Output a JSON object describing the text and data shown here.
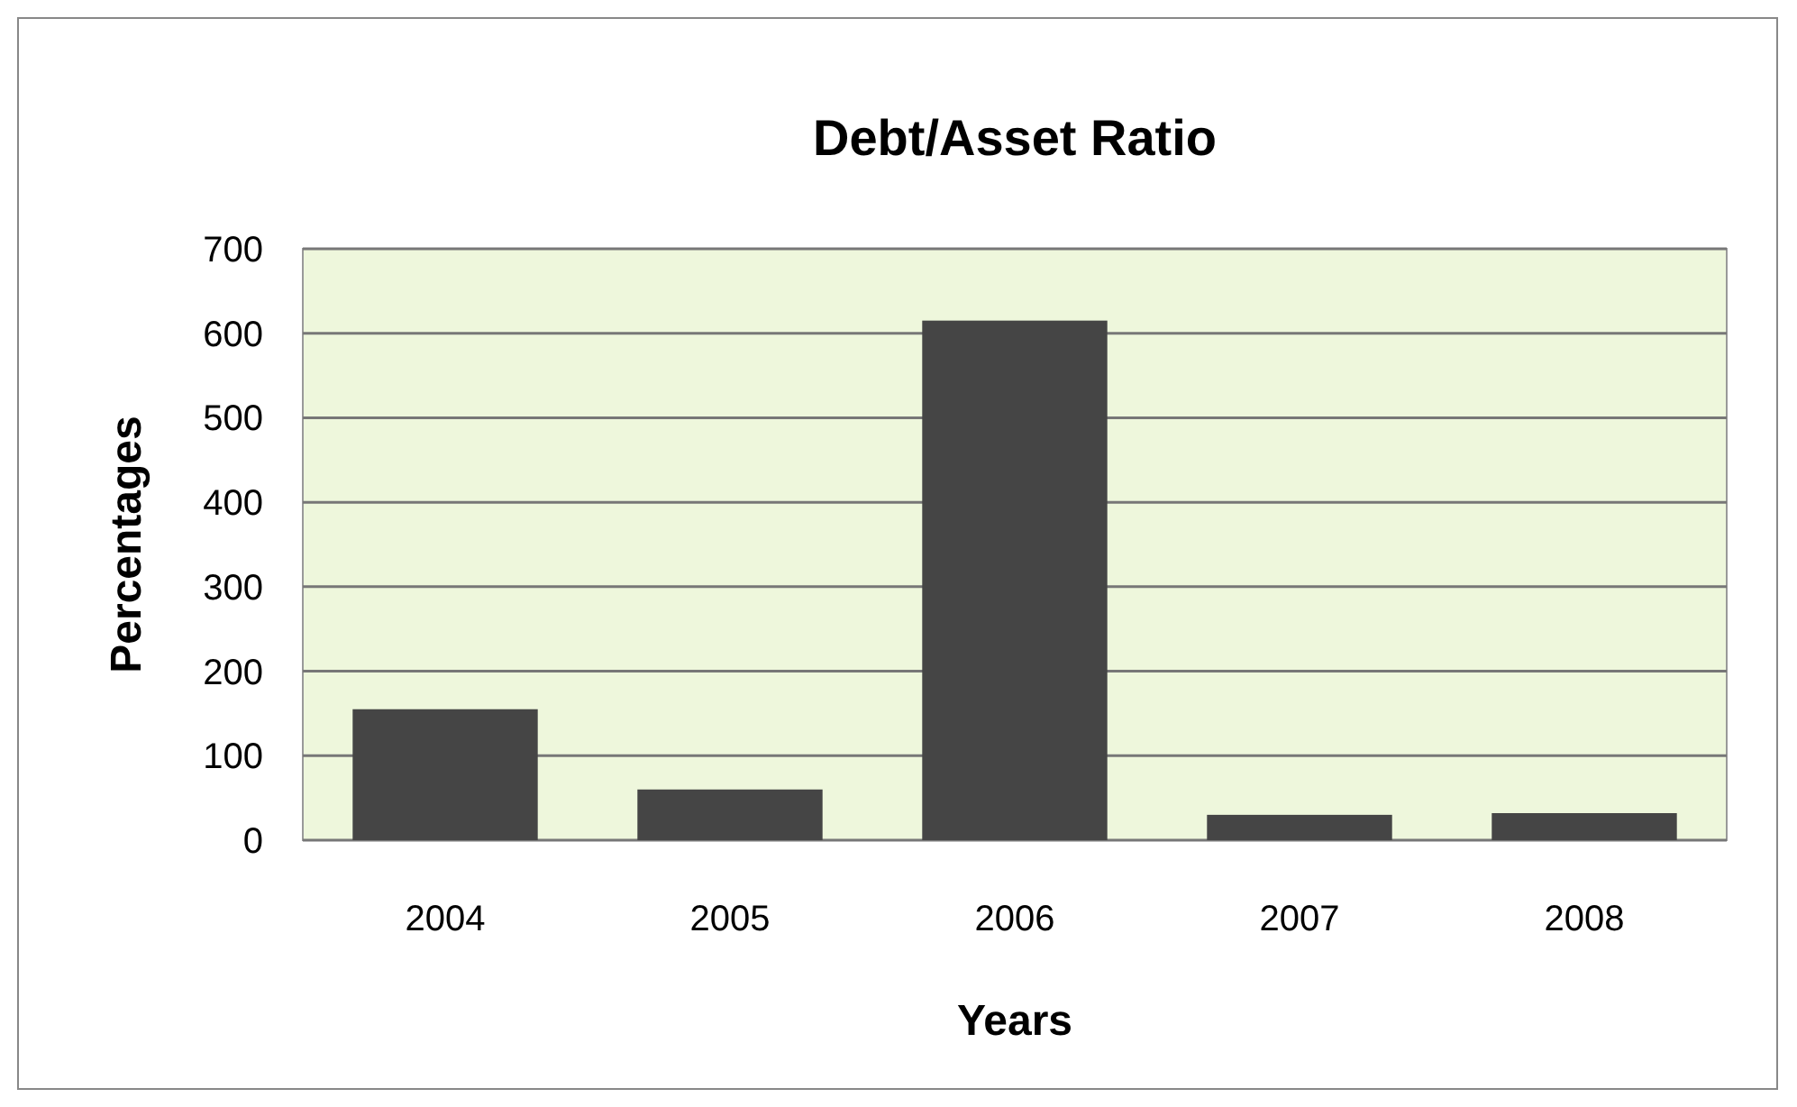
{
  "chart_data": {
    "type": "bar",
    "title": "Debt/Asset Ratio",
    "xlabel": "Years",
    "ylabel": "Percentages",
    "categories": [
      "2004",
      "2005",
      "2006",
      "2007",
      "2008"
    ],
    "values": [
      155,
      60,
      615,
      30,
      32
    ],
    "color": "#454545",
    "ylim": [
      0,
      700
    ],
    "yticks": [
      0,
      100,
      200,
      300,
      400,
      500,
      600,
      700
    ],
    "grid": "y"
  }
}
